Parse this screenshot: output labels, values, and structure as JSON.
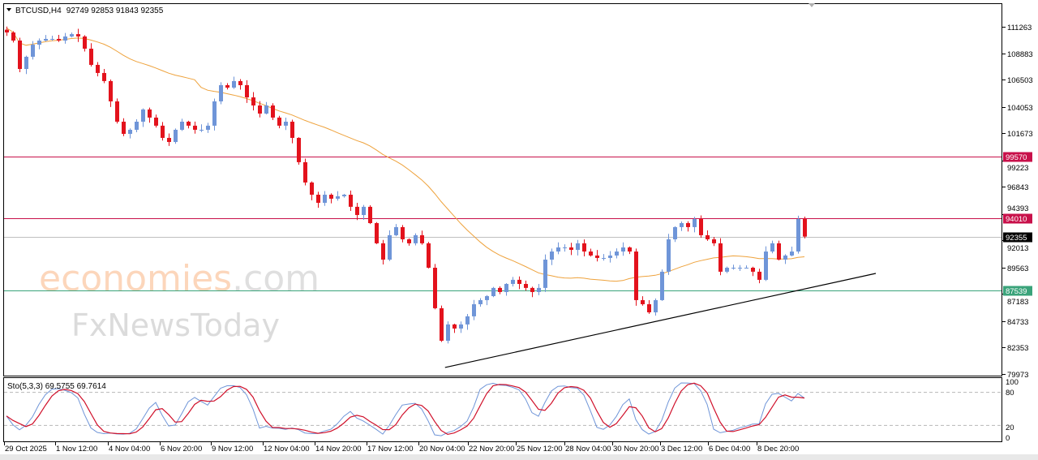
{
  "header": {
    "symbol_timeframe": "BTCUSD,H4",
    "ohlc": "92749 92853 91843 92355"
  },
  "indicator": {
    "label": "Sto(5,3,3) 69.5755 69.7614",
    "levels": [
      100,
      80,
      20,
      0
    ]
  },
  "watermark": {
    "line1_a": "economies",
    "line1_b": ".com",
    "line2": "FxNewsToday"
  },
  "colors": {
    "bull": "#6f95d8",
    "bear": "#e3121c",
    "ma": "#eea23c",
    "resistance": "#c8104a",
    "support": "#3aa37a",
    "current": "#c0c0c0",
    "stoch_main": "#6f95d8",
    "stoch_signal": "#d0102a"
  },
  "chart_data": {
    "type": "candlestick",
    "symbol": "BTCUSD",
    "timeframe": "H4",
    "price_ticks": [
      111263,
      108883,
      106503,
      104053,
      101673,
      99223,
      96843,
      94393,
      92013,
      89563,
      87183,
      84733,
      82353,
      79973
    ],
    "ylim": [
      79973,
      111263
    ],
    "time_labels": [
      "29 Oct 2025",
      "1 Nov 12:00",
      "4 Nov 04:00",
      "6 Nov 20:00",
      "9 Nov 12:00",
      "12 Nov 04:00",
      "14 Nov 20:00",
      "17 Nov 12:00",
      "20 Nov 04:00",
      "22 Nov 20:00",
      "25 Nov 12:00",
      "28 Nov 04:00",
      "30 Nov 20:00",
      "3 Dec 12:00",
      "6 Dec 04:00",
      "8 Dec 20:00"
    ],
    "closes": [
      110750,
      110020,
      107460,
      108560,
      109650,
      110020,
      110170,
      110170,
      110020,
      110390,
      110600,
      110390,
      109290,
      107830,
      107100,
      106370,
      104540,
      102710,
      101610,
      101980,
      102710,
      103810,
      103080,
      102350,
      101250,
      100880,
      101980,
      102710,
      102350,
      101980,
      101980,
      102350,
      104540,
      106000,
      105780,
      106370,
      106000,
      104900,
      104170,
      103440,
      104170,
      103080,
      102350,
      102710,
      101250,
      99060,
      97230,
      96130,
      95400,
      96130,
      95770,
      95990,
      96130,
      95040,
      94300,
      95040,
      93570,
      91750,
      90280,
      92480,
      93210,
      92110,
      91750,
      92480,
      91750,
      89550,
      85900,
      82970,
      84440,
      84070,
      84440,
      85170,
      86260,
      86630,
      86990,
      87730,
      87360,
      88090,
      88460,
      88090,
      87730,
      87360,
      87730,
      90280,
      91010,
      91380,
      91380,
      91160,
      91750,
      91010,
      90650,
      90430,
      90430,
      90650,
      91010,
      91380,
      91010,
      86630,
      86260,
      85530,
      86630,
      89190,
      92110,
      93210,
      93570,
      93210,
      93940,
      92480,
      92110,
      91750,
      89190,
      89550,
      89550,
      89550,
      89550,
      89190,
      88460,
      91010,
      91750,
      90280,
      90650,
      91010,
      93940,
      92355
    ],
    "horizontal_levels": [
      {
        "price": 99570,
        "kind": "resistance"
      },
      {
        "price": 94010,
        "kind": "resistance"
      },
      {
        "price": 92355,
        "kind": "current"
      },
      {
        "price": 87539,
        "kind": "support"
      }
    ],
    "trendline": {
      "from": {
        "bar": 67.6,
        "price": 80560
      },
      "to": {
        "bar": 134,
        "price": 89040
      }
    },
    "moving_average": {
      "type": "SMA"
    },
    "stochastic": {
      "k": 5,
      "d": 3,
      "slowing": 3,
      "main": 69.5755,
      "signal": 69.7614
    }
  }
}
